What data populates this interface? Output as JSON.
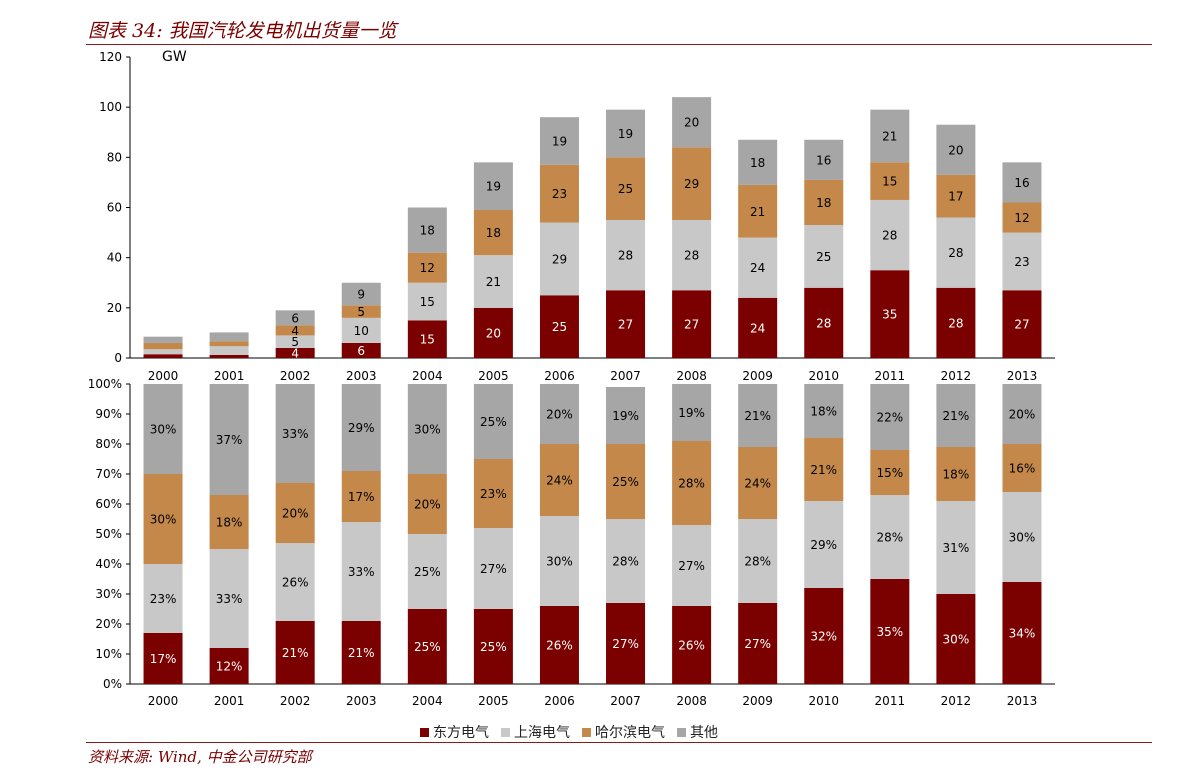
{
  "title": "图表 34:  我国汽轮发电机出货量一览",
  "source": "资料来源:    Wind, 中金公司研究部",
  "colors": {
    "accent": "#7a0000",
    "series": [
      "#7b0000",
      "#c8c8c8",
      "#c4894a",
      "#a6a6a6"
    ]
  },
  "chart_data": [
    {
      "type": "bar",
      "stacked": true,
      "unit_label": "GW",
      "categories": [
        "2000",
        "2001",
        "2002",
        "2003",
        "2004",
        "2005",
        "2006",
        "2007",
        "2008",
        "2009",
        "2010",
        "2011",
        "2012",
        "2013"
      ],
      "ylim": [
        0,
        120
      ],
      "yticks": [
        0,
        20,
        40,
        60,
        80,
        100,
        120
      ],
      "series": [
        {
          "name": "东方电气",
          "values": [
            1.5,
            1.2,
            4,
            6,
            15,
            20,
            25,
            27,
            27,
            24,
            28,
            35,
            28,
            27
          ],
          "labels": [
            "",
            "",
            "4",
            "6",
            "15",
            "20",
            "25",
            "27",
            "27",
            "24",
            "28",
            "35",
            "28",
            "27"
          ]
        },
        {
          "name": "上海电气",
          "values": [
            2,
            3.5,
            5,
            10,
            15,
            21,
            29,
            28,
            28,
            24,
            25,
            28,
            28,
            23
          ],
          "labels": [
            "",
            "",
            "5",
            "10",
            "15",
            "21",
            "29",
            "28",
            "28",
            "24",
            "25",
            "28",
            "28",
            "23"
          ]
        },
        {
          "name": "哈尔滨电气",
          "values": [
            2.5,
            2,
            4,
            5,
            12,
            18,
            23,
            25,
            29,
            21,
            18,
            15,
            17,
            12
          ],
          "labels": [
            "",
            "",
            "4",
            "5",
            "12",
            "18",
            "23",
            "25",
            "29",
            "21",
            "18",
            "15",
            "17",
            "12"
          ]
        },
        {
          "name": "其他",
          "values": [
            2.5,
            3.5,
            6,
            9,
            18,
            19,
            19,
            19,
            20,
            18,
            16,
            21,
            20,
            16
          ],
          "labels": [
            "",
            "",
            "6",
            "9",
            "18",
            "19",
            "19",
            "19",
            "20",
            "18",
            "16",
            "21",
            "20",
            "16"
          ]
        }
      ]
    },
    {
      "type": "bar",
      "stacked": true,
      "percent": true,
      "categories": [
        "2000",
        "2001",
        "2002",
        "2003",
        "2004",
        "2005",
        "2006",
        "2007",
        "2008",
        "2009",
        "2010",
        "2011",
        "2012",
        "2013"
      ],
      "ylim": [
        0,
        100
      ],
      "yticks": [
        "0%",
        "10%",
        "20%",
        "30%",
        "40%",
        "50%",
        "60%",
        "70%",
        "80%",
        "90%",
        "100%"
      ],
      "series": [
        {
          "name": "东方电气",
          "values": [
            17,
            12,
            21,
            21,
            25,
            25,
            26,
            27,
            26,
            27,
            32,
            35,
            30,
            34
          ],
          "labels": [
            "17%",
            "12%",
            "21%",
            "21%",
            "25%",
            "25%",
            "26%",
            "27%",
            "26%",
            "27%",
            "32%",
            "35%",
            "30%",
            "34%"
          ]
        },
        {
          "name": "上海电气",
          "values": [
            23,
            33,
            26,
            33,
            25,
            27,
            30,
            28,
            27,
            28,
            29,
            28,
            31,
            30
          ],
          "labels": [
            "23%",
            "33%",
            "26%",
            "33%",
            "25%",
            "27%",
            "30%",
            "28%",
            "27%",
            "28%",
            "29%",
            "28%",
            "31%",
            "30%"
          ]
        },
        {
          "name": "哈尔滨电气",
          "values": [
            30,
            18,
            20,
            17,
            20,
            23,
            24,
            25,
            28,
            24,
            21,
            15,
            18,
            16
          ],
          "labels": [
            "30%",
            "18%",
            "20%",
            "17%",
            "20%",
            "23%",
            "24%",
            "25%",
            "28%",
            "24%",
            "21%",
            "15%",
            "18%",
            "16%"
          ]
        },
        {
          "name": "其他",
          "values": [
            30,
            37,
            33,
            29,
            30,
            25,
            20,
            19,
            19,
            21,
            18,
            22,
            21,
            20
          ],
          "labels": [
            "30%",
            "37%",
            "33%",
            "29%",
            "30%",
            "25%",
            "20%",
            "19%",
            "19%",
            "21%",
            "18%",
            "22%",
            "21%",
            "20%"
          ]
        }
      ]
    }
  ],
  "legend": [
    "东方电气",
    "上海电气",
    "哈尔滨电气",
    "其他"
  ]
}
